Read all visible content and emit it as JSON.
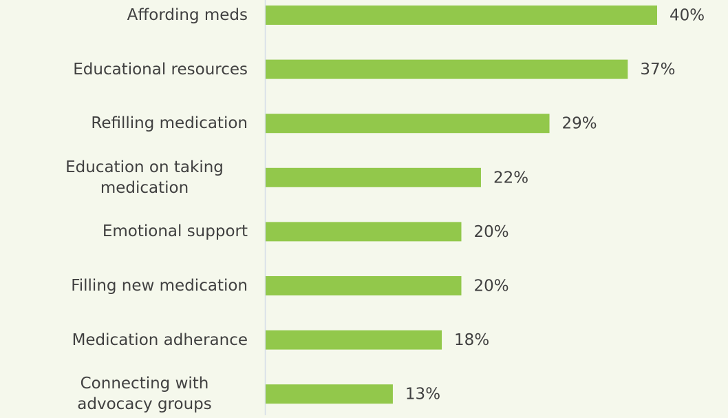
{
  "chart_data": {
    "type": "bar",
    "orientation": "horizontal",
    "categories": [
      "Affording meds",
      "Educational resources",
      "Refilling medication",
      "Education on taking medication",
      "Emotional support",
      "Filling new medication",
      "Medication adherance",
      "Connecting with advocacy groups"
    ],
    "values": [
      40,
      37,
      29,
      22,
      20,
      20,
      18,
      13
    ],
    "value_labels": [
      "40%",
      "37%",
      "29%",
      "22%",
      "20%",
      "20%",
      "18%",
      "13%"
    ],
    "color": "#92c84b"
  }
}
